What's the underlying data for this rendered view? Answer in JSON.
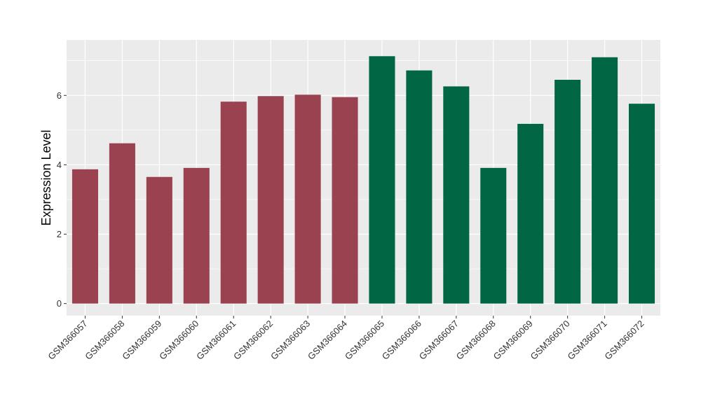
{
  "chart_data": {
    "type": "bar",
    "title": "",
    "xlabel": "",
    "ylabel": "Expression Level",
    "ylim": [
      -0.35,
      7.6
    ],
    "yticks": [
      0,
      2,
      4,
      6
    ],
    "grid": true,
    "legend": "none",
    "categories": [
      "GSM366057",
      "GSM366058",
      "GSM366059",
      "GSM366060",
      "GSM366061",
      "GSM366062",
      "GSM366063",
      "GSM366064",
      "GSM366065",
      "GSM366066",
      "GSM366067",
      "GSM366068",
      "GSM366069",
      "GSM366070",
      "GSM366071",
      "GSM366072"
    ],
    "values": [
      3.87,
      4.62,
      3.65,
      3.91,
      5.82,
      5.98,
      6.02,
      5.95,
      7.13,
      6.72,
      6.26,
      3.91,
      5.18,
      6.45,
      7.1,
      5.76
    ],
    "group_colors": [
      "#9a4250",
      "#9a4250",
      "#9a4250",
      "#9a4250",
      "#9a4250",
      "#9a4250",
      "#9a4250",
      "#9a4250",
      "#006644",
      "#006644",
      "#006644",
      "#006644",
      "#006644",
      "#006644",
      "#006644",
      "#006644"
    ],
    "panel_background": "#ebebeb",
    "grid_color": "#ffffff"
  }
}
